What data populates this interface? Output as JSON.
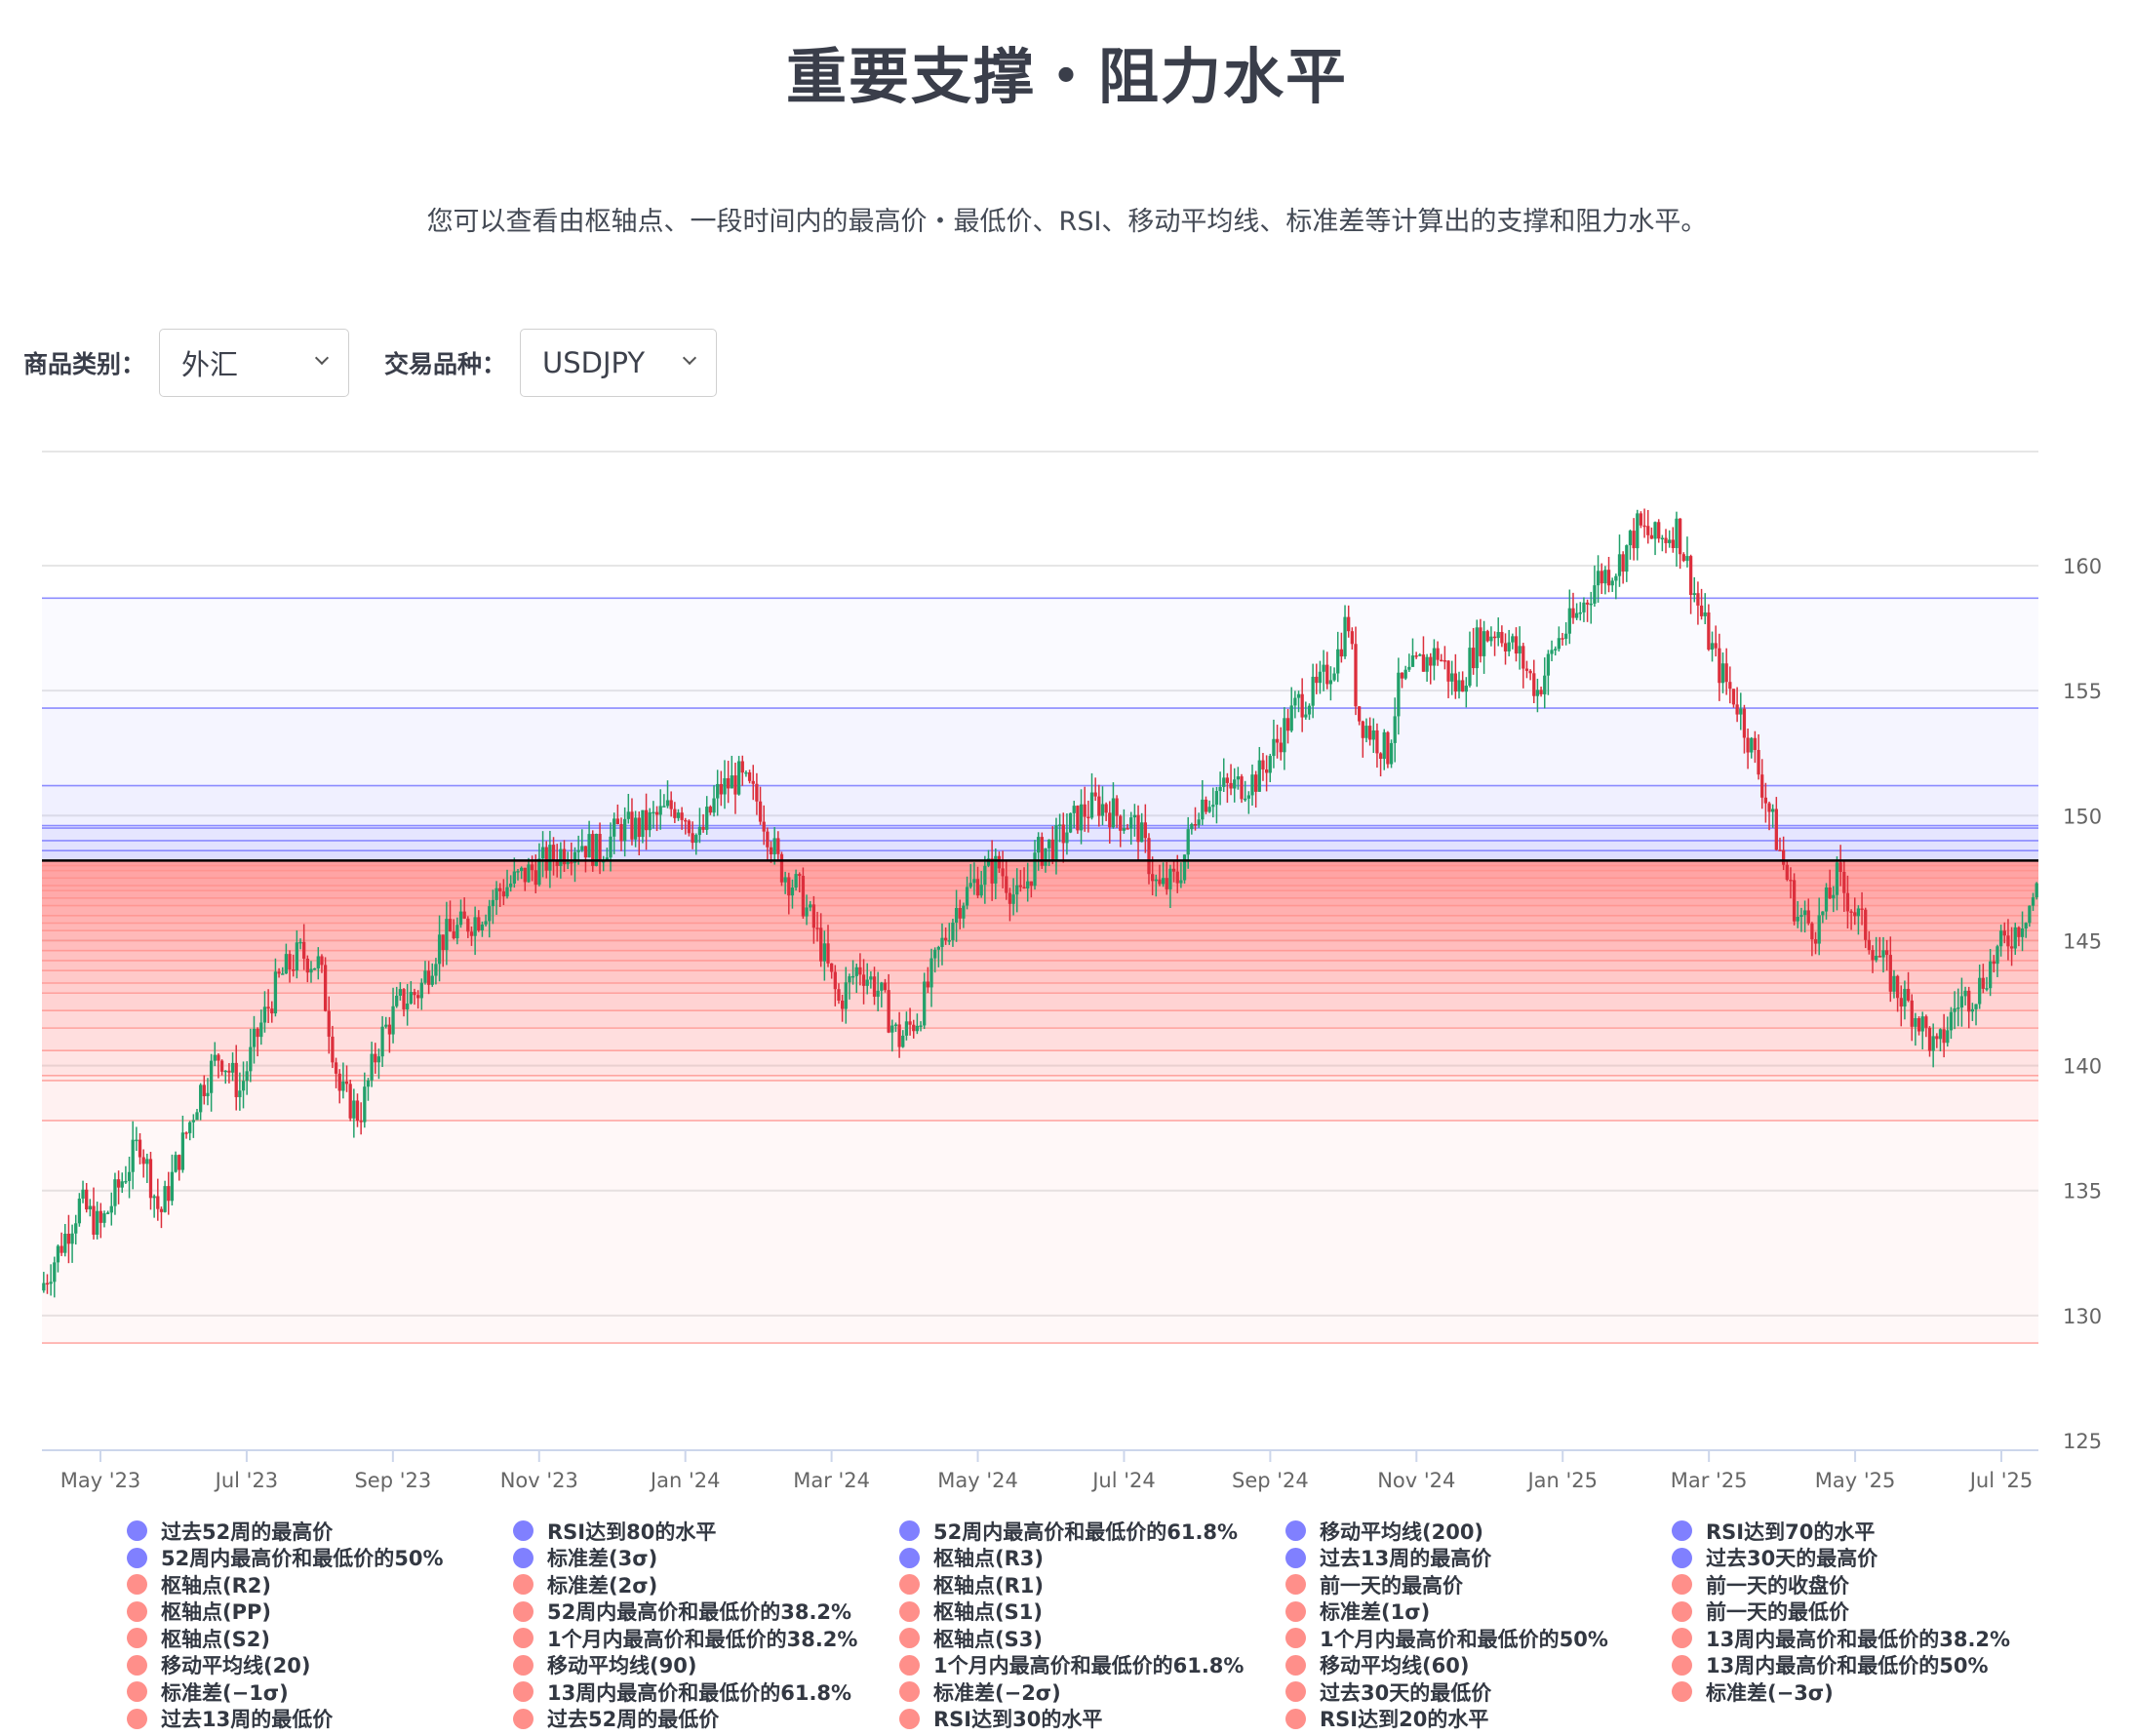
{
  "header": {
    "title": "重要支撑・阻力水平",
    "subtitle": "您可以查看由枢轴点、一段时间内的最高价・最低价、RSI、移动平均线、标准差等计算出的支撑和阻力水平。"
  },
  "filters": {
    "category_label": "商品类别：",
    "category_value": "外汇",
    "symbol_label": "交易品种：",
    "symbol_value": "USDJPY"
  },
  "colors": {
    "resistance": "#8080ff",
    "support": "#ff8f8a",
    "up_candle": "#22a06b",
    "down_candle": "#dc2f3c",
    "current_price_line": "#000000",
    "axis_text": "#666666"
  },
  "chart_data": {
    "type": "candlestick",
    "title": "重要支撑・阻力水平",
    "symbol": "USDJPY",
    "xlabel": "",
    "ylabel": "",
    "ylim": [
      125,
      162
    ],
    "y_ticks": [
      125,
      130,
      135,
      140,
      145,
      150,
      155,
      160
    ],
    "x_ticks": [
      "May '23",
      "Jul '23",
      "Sep '23",
      "Nov '23",
      "Jan '24",
      "Mar '24",
      "May '24",
      "Jul '24",
      "Sep '24",
      "Nov '24",
      "Jan '25",
      "Mar '25",
      "May '25",
      "Jul '25"
    ],
    "grid": true,
    "legend_position": "bottom",
    "current_price": 148.2,
    "price_path_approx": {
      "note": "approximate close path read from chart, by x-tick fraction",
      "points": [
        [
          0.0,
          131.0
        ],
        [
          0.02,
          134.5
        ],
        [
          0.03,
          133.5
        ],
        [
          0.05,
          137.0
        ],
        [
          0.06,
          134.0
        ],
        [
          0.08,
          139.0
        ],
        [
          0.09,
          140.5
        ],
        [
          0.1,
          139.0
        ],
        [
          0.11,
          141.5
        ],
        [
          0.12,
          143.5
        ],
        [
          0.13,
          144.5
        ],
        [
          0.14,
          144.0
        ],
        [
          0.15,
          139.0
        ],
        [
          0.16,
          138.0
        ],
        [
          0.17,
          141.0
        ],
        [
          0.18,
          142.5
        ],
        [
          0.19,
          143.0
        ],
        [
          0.2,
          145.0
        ],
        [
          0.21,
          145.5
        ],
        [
          0.22,
          146.0
        ],
        [
          0.23,
          147.0
        ],
        [
          0.24,
          147.5
        ],
        [
          0.25,
          148.0
        ],
        [
          0.27,
          149.0
        ],
        [
          0.28,
          148.5
        ],
        [
          0.29,
          149.5
        ],
        [
          0.3,
          149.5
        ],
        [
          0.31,
          150.0
        ],
        [
          0.32,
          150.5
        ],
        [
          0.33,
          149.0
        ],
        [
          0.34,
          151.0
        ],
        [
          0.35,
          151.5
        ],
        [
          0.36,
          150.5
        ],
        [
          0.37,
          148.0
        ],
        [
          0.38,
          147.0
        ],
        [
          0.39,
          145.0
        ],
        [
          0.4,
          142.5
        ],
        [
          0.41,
          144.0
        ],
        [
          0.42,
          143.0
        ],
        [
          0.43,
          141.0
        ],
        [
          0.44,
          142.0
        ],
        [
          0.45,
          144.5
        ],
        [
          0.46,
          146.5
        ],
        [
          0.47,
          147.5
        ],
        [
          0.48,
          148.0
        ],
        [
          0.49,
          146.5
        ],
        [
          0.5,
          148.5
        ],
        [
          0.51,
          149.0
        ],
        [
          0.52,
          150.0
        ],
        [
          0.53,
          150.5
        ],
        [
          0.54,
          150.0
        ],
        [
          0.55,
          149.5
        ],
        [
          0.56,
          147.0
        ],
        [
          0.57,
          147.5
        ],
        [
          0.58,
          150.5
        ],
        [
          0.59,
          151.0
        ],
        [
          0.6,
          151.2
        ],
        [
          0.61,
          151.5
        ],
        [
          0.62,
          153.0
        ],
        [
          0.63,
          154.5
        ],
        [
          0.64,
          155.0
        ],
        [
          0.65,
          156.5
        ],
        [
          0.655,
          158.0
        ],
        [
          0.66,
          154.0
        ],
        [
          0.67,
          153.0
        ],
        [
          0.675,
          152.5
        ],
        [
          0.68,
          155.0
        ],
        [
          0.69,
          156.0
        ],
        [
          0.7,
          156.5
        ],
        [
          0.71,
          155.0
        ],
        [
          0.72,
          157.0
        ],
        [
          0.73,
          157.5
        ],
        [
          0.74,
          156.5
        ],
        [
          0.75,
          155.0
        ],
        [
          0.76,
          157.0
        ],
        [
          0.77,
          158.0
        ],
        [
          0.78,
          159.5
        ],
        [
          0.79,
          160.0
        ],
        [
          0.8,
          161.5
        ],
        [
          0.81,
          161.0
        ],
        [
          0.82,
          161.5
        ],
        [
          0.83,
          158.5
        ],
        [
          0.84,
          156.0
        ],
        [
          0.85,
          154.5
        ],
        [
          0.86,
          152.0
        ],
        [
          0.87,
          149.0
        ],
        [
          0.88,
          146.0
        ],
        [
          0.89,
          145.5
        ],
        [
          0.9,
          147.5
        ],
        [
          0.91,
          146.0
        ],
        [
          0.92,
          144.5
        ],
        [
          0.93,
          143.0
        ],
        [
          0.94,
          142.0
        ],
        [
          0.95,
          140.5
        ],
        [
          0.96,
          142.5
        ],
        [
          0.97,
          143.0
        ],
        [
          0.98,
          144.5
        ],
        [
          0.99,
          145.5
        ],
        [
          1.0,
          147.0
        ]
      ]
    },
    "support_resistance_levels": {
      "resistance_approx": [
        158.7,
        154.3,
        151.2,
        149.6,
        149.5,
        149.0,
        148.6
      ],
      "support_approx": [
        148.0,
        147.8,
        147.5,
        147.2,
        147.0,
        146.7,
        146.4,
        146.0,
        145.7,
        145.4,
        145.0,
        144.6,
        144.2,
        143.8,
        143.3,
        142.9,
        142.2,
        141.5,
        140.6,
        139.6,
        139.4,
        137.8,
        128.9
      ]
    },
    "series": [
      {
        "name": "过去52周的最高价",
        "type": "resistance"
      },
      {
        "name": "52周内最高价和最低价的50%",
        "type": "resistance"
      },
      {
        "name": "枢轴点(R2)",
        "type": "support"
      },
      {
        "name": "枢轴点(PP)",
        "type": "support"
      },
      {
        "name": "枢轴点(S2)",
        "type": "support"
      },
      {
        "name": "移动平均线(20)",
        "type": "support"
      },
      {
        "name": "标准差(−1σ)",
        "type": "support"
      },
      {
        "name": "过去13周的最低价",
        "type": "support"
      },
      {
        "name": "RSI达到80的水平",
        "type": "resistance"
      },
      {
        "name": "标准差(3σ)",
        "type": "resistance"
      },
      {
        "name": "标准差(2σ)",
        "type": "support"
      },
      {
        "name": "52周内最高价和最低价的38.2%",
        "type": "support"
      },
      {
        "name": "1个月内最高价和最低价的38.2%",
        "type": "support"
      },
      {
        "name": "移动平均线(90)",
        "type": "support"
      },
      {
        "name": "13周内最高价和最低价的61.8%",
        "type": "support"
      },
      {
        "name": "过去52周的最低价",
        "type": "support"
      },
      {
        "name": "52周内最高价和最低价的61.8%",
        "type": "resistance"
      },
      {
        "name": "枢轴点(R3)",
        "type": "resistance"
      },
      {
        "name": "枢轴点(R1)",
        "type": "support"
      },
      {
        "name": "枢轴点(S1)",
        "type": "support"
      },
      {
        "name": "枢轴点(S3)",
        "type": "support"
      },
      {
        "name": "1个月内最高价和最低价的61.8%",
        "type": "support"
      },
      {
        "name": "标准差(−2σ)",
        "type": "support"
      },
      {
        "name": "RSI达到30的水平",
        "type": "support"
      },
      {
        "name": "移动平均线(200)",
        "type": "resistance"
      },
      {
        "name": "过去13周的最高价",
        "type": "resistance"
      },
      {
        "name": "前一天的最高价",
        "type": "support"
      },
      {
        "name": "标准差(1σ)",
        "type": "support"
      },
      {
        "name": "1个月内最高价和最低价的50%",
        "type": "support"
      },
      {
        "name": "移动平均线(60)",
        "type": "support"
      },
      {
        "name": "过去30天的最低价",
        "type": "support"
      },
      {
        "name": "RSI达到20的水平",
        "type": "support"
      },
      {
        "name": "RSI达到70的水平",
        "type": "resistance"
      },
      {
        "name": "过去30天的最高价",
        "type": "resistance"
      },
      {
        "name": "前一天的收盘价",
        "type": "support"
      },
      {
        "name": "前一天的最低价",
        "type": "support"
      },
      {
        "name": "13周内最高价和最低价的38.2%",
        "type": "support"
      },
      {
        "name": "13周内最高价和最低价的50%",
        "type": "support"
      },
      {
        "name": "标准差(−3σ)",
        "type": "support"
      }
    ]
  }
}
